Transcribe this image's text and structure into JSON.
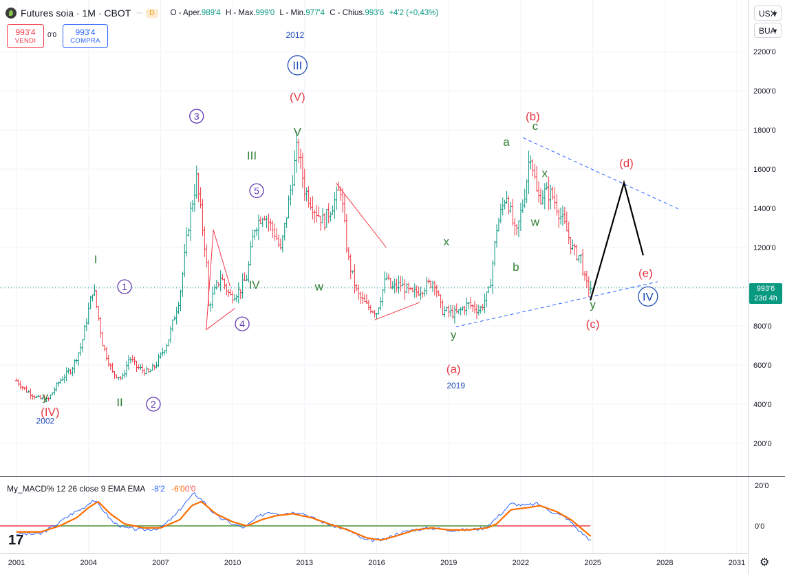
{
  "header": {
    "title": "Futures soia · 1M · CBOT",
    "badge1": "",
    "badge2": "D",
    "o_label": "O - Aper.",
    "o_value": "989'4",
    "h_label": "H - Max.",
    "h_value": "999'0",
    "l_label": "L - Min.",
    "l_value": "977'4",
    "c_label": "C - Chius.",
    "c_value": "993'6",
    "change": "+4'2 (+0,43%)"
  },
  "trade": {
    "sell_price": "993'4",
    "sell_label": "VENDI",
    "spread": "0'0",
    "buy_price": "993'4",
    "buy_label": "COMPRA"
  },
  "selectors": {
    "currency": "USX",
    "unit": "BUA"
  },
  "last_price": {
    "value": "993'6",
    "countdown": "23d 4h"
  },
  "macd_legend": {
    "name": "My_MACD%",
    "params": "12 26 close 9 EMA EMA",
    "macd": "-8'2",
    "signal": "-6'0",
    "hist": "0'0"
  },
  "colors": {
    "up": "#089981",
    "down": "#f23645",
    "green_wave": "#2e7d32",
    "red_wave": "#e53945",
    "purple_wave": "#5e35b1",
    "blue_wave": "#1e4bb8",
    "macd": "#2962ff",
    "signal": "#ff6d00"
  },
  "chart_data": {
    "type": "line",
    "title": "Futures soia · 1M · CBOT",
    "y_unit": "USX/BUA",
    "ylim": [
      100,
      2250
    ],
    "y_ticks": [
      "200'0",
      "400'0",
      "600'0",
      "800'0",
      "1000'0",
      "1200'0",
      "1400'0",
      "1600'0",
      "1800'0",
      "2000'0",
      "2200'0"
    ],
    "x_ticks": [
      "2001",
      "2004",
      "2007",
      "2010",
      "2013",
      "2016",
      "2019",
      "2022",
      "2025",
      "2028",
      "2031"
    ],
    "xlim": [
      2000.9,
      2031.5
    ],
    "price_anchors": [
      [
        2001.0,
        520
      ],
      [
        2001.4,
        470
      ],
      [
        2001.9,
        430
      ],
      [
        2002.3,
        420
      ],
      [
        2002.8,
        520
      ],
      [
        2003.3,
        580
      ],
      [
        2003.7,
        700
      ],
      [
        2004.2,
        1000
      ],
      [
        2004.6,
        700
      ],
      [
        2005.0,
        560
      ],
      [
        2005.4,
        530
      ],
      [
        2005.7,
        640
      ],
      [
        2006.0,
        590
      ],
      [
        2006.5,
        560
      ],
      [
        2006.8,
        600
      ],
      [
        2007.3,
        720
      ],
      [
        2007.8,
        950
      ],
      [
        2008.2,
        1350
      ],
      [
        2008.5,
        1550
      ],
      [
        2008.9,
        1150
      ],
      [
        2009.0,
        900
      ],
      [
        2009.5,
        1050
      ],
      [
        2009.9,
        950
      ],
      [
        2010.3,
        980
      ],
      [
        2010.6,
        1050
      ],
      [
        2010.9,
        1300
      ],
      [
        2011.3,
        1380
      ],
      [
        2011.8,
        1260
      ],
      [
        2012.0,
        1180
      ],
      [
        2012.4,
        1480
      ],
      [
        2012.7,
        1720
      ],
      [
        2013.0,
        1500
      ],
      [
        2013.4,
        1400
      ],
      [
        2013.8,
        1330
      ],
      [
        2014.3,
        1450
      ],
      [
        2014.5,
        1500
      ],
      [
        2014.8,
        1150
      ],
      [
        2015.2,
        960
      ],
      [
        2015.6,
        900
      ],
      [
        2016.0,
        870
      ],
      [
        2016.4,
        1050
      ],
      [
        2016.6,
        990
      ],
      [
        2017.0,
        1010
      ],
      [
        2017.5,
        960
      ],
      [
        2018.0,
        1000
      ],
      [
        2018.4,
        1030
      ],
      [
        2018.7,
        880
      ],
      [
        2019.3,
        860
      ],
      [
        2019.8,
        910
      ],
      [
        2020.3,
        880
      ],
      [
        2020.7,
        980
      ],
      [
        2021.0,
        1300
      ],
      [
        2021.4,
        1480
      ],
      [
        2021.8,
        1250
      ],
      [
        2022.2,
        1500
      ],
      [
        2022.4,
        1700
      ],
      [
        2022.7,
        1450
      ],
      [
        2023.0,
        1480
      ],
      [
        2023.3,
        1470
      ],
      [
        2023.6,
        1380
      ],
      [
        2023.9,
        1290
      ],
      [
        2024.2,
        1180
      ],
      [
        2024.5,
        1150
      ],
      [
        2024.7,
        1010
      ],
      [
        2024.9,
        995
      ]
    ],
    "macd_ticks": [
      "20'0",
      "0'0"
    ],
    "macd_ylim": [
      -12,
      22
    ],
    "macd_anchors": [
      [
        2001.0,
        -4
      ],
      [
        2002.0,
        -4
      ],
      [
        2002.7,
        1
      ],
      [
        2003.3,
        6
      ],
      [
        2003.8,
        9
      ],
      [
        2004.2,
        13
      ],
      [
        2004.6,
        8
      ],
      [
        2005.0,
        2
      ],
      [
        2005.5,
        -1
      ],
      [
        2006.3,
        -2
      ],
      [
        2007.0,
        -1
      ],
      [
        2007.6,
        5
      ],
      [
        2008.0,
        11
      ],
      [
        2008.4,
        16
      ],
      [
        2008.8,
        12
      ],
      [
        2009.3,
        5
      ],
      [
        2010.0,
        1
      ],
      [
        2010.5,
        -1
      ],
      [
        2011.0,
        4
      ],
      [
        2011.5,
        7
      ],
      [
        2012.0,
        6
      ],
      [
        2012.8,
        7
      ],
      [
        2013.5,
        3
      ],
      [
        2014.2,
        0
      ],
      [
        2014.8,
        -2
      ],
      [
        2015.5,
        -7
      ],
      [
        2016.3,
        -7
      ],
      [
        2016.8,
        -4
      ],
      [
        2017.5,
        -2
      ],
      [
        2018.3,
        -1
      ],
      [
        2019.0,
        -2
      ],
      [
        2019.8,
        -2
      ],
      [
        2020.5,
        -1
      ],
      [
        2021.0,
        4
      ],
      [
        2021.6,
        11
      ],
      [
        2022.2,
        10
      ],
      [
        2022.7,
        11
      ],
      [
        2023.3,
        7
      ],
      [
        2023.9,
        4
      ],
      [
        2024.4,
        -2
      ],
      [
        2024.9,
        -7
      ]
    ],
    "signal_anchors": [
      [
        2001.0,
        -3
      ],
      [
        2002.0,
        -3
      ],
      [
        2002.8,
        0
      ],
      [
        2003.5,
        4
      ],
      [
        2004.0,
        9
      ],
      [
        2004.4,
        12
      ],
      [
        2004.9,
        6
      ],
      [
        2005.5,
        1
      ],
      [
        2006.3,
        -1
      ],
      [
        2007.0,
        -1
      ],
      [
        2007.8,
        3
      ],
      [
        2008.3,
        10
      ],
      [
        2008.7,
        12
      ],
      [
        2009.3,
        6
      ],
      [
        2010.0,
        2
      ],
      [
        2010.6,
        0
      ],
      [
        2011.2,
        3
      ],
      [
        2011.8,
        5
      ],
      [
        2012.5,
        6
      ],
      [
        2013.3,
        4
      ],
      [
        2014.0,
        1
      ],
      [
        2014.8,
        -2
      ],
      [
        2015.6,
        -6
      ],
      [
        2016.2,
        -7
      ],
      [
        2016.8,
        -5
      ],
      [
        2017.6,
        -2
      ],
      [
        2018.3,
        -1
      ],
      [
        2019.0,
        -2
      ],
      [
        2019.8,
        -2
      ],
      [
        2020.6,
        -1
      ],
      [
        2021.0,
        1
      ],
      [
        2021.6,
        8
      ],
      [
        2022.3,
        9
      ],
      [
        2022.8,
        10
      ],
      [
        2023.5,
        7
      ],
      [
        2024.1,
        3
      ],
      [
        2024.6,
        -2
      ],
      [
        2024.9,
        -5
      ]
    ],
    "trend_lines": [
      {
        "color": "#2962ff",
        "dashed": true,
        "from": [
          2022.1,
          1760
        ],
        "to": [
          2028.6,
          1395
        ]
      },
      {
        "color": "#2962ff",
        "dashed": true,
        "from": [
          2019.3,
          795
        ],
        "to": [
          2027.7,
          1025
        ]
      },
      {
        "color": "#f23645",
        "dashed": false,
        "from": [
          2014.3,
          1530
        ],
        "to": [
          2016.4,
          1200
        ]
      },
      {
        "color": "#f23645",
        "dashed": false,
        "from": [
          2015.9,
          830
        ],
        "to": [
          2017.8,
          920
        ]
      },
      {
        "color": "#f23645",
        "dashed": false,
        "from": [
          2009.2,
          1290
        ],
        "to": [
          2009.9,
          1000
        ]
      },
      {
        "color": "#f23645",
        "dashed": false,
        "from": [
          2008.9,
          780
        ],
        "to": [
          2010.1,
          890
        ]
      },
      {
        "color": "#f23645",
        "dashed": false,
        "from": [
          2008.9,
          780
        ],
        "to": [
          2009.2,
          1290
        ]
      },
      {
        "color": "#000000",
        "dashed": false,
        "width": 2.2,
        "points": [
          [
            2024.9,
            930
          ],
          [
            2026.3,
            1530
          ],
          [
            2027.1,
            1160
          ]
        ]
      }
    ],
    "wave_labels": [
      {
        "text": "I",
        "x": 2004.3,
        "y": 1120,
        "color": "#2e7d32"
      },
      {
        "text": "II",
        "x": 2005.3,
        "y": 390,
        "color": "#2e7d32"
      },
      {
        "text": "III",
        "x": 2010.8,
        "y": 1650,
        "color": "#2e7d32"
      },
      {
        "text": "IV",
        "x": 2010.9,
        "y": 990,
        "color": "#2e7d32"
      },
      {
        "text": "V",
        "x": 2012.7,
        "y": 1770,
        "color": "#2e7d32"
      },
      {
        "text": "w",
        "x": 2013.6,
        "y": 980,
        "color": "#2e7d32"
      },
      {
        "text": "x",
        "x": 2018.9,
        "y": 1210,
        "color": "#2e7d32"
      },
      {
        "text": "y",
        "x": 2002.2,
        "y": 420,
        "color": "#2e7d32"
      },
      {
        "text": "y",
        "x": 2019.2,
        "y": 735,
        "color": "#2e7d32"
      },
      {
        "text": "a",
        "x": 2021.4,
        "y": 1720,
        "color": "#2e7d32"
      },
      {
        "text": "b",
        "x": 2021.8,
        "y": 1080,
        "color": "#2e7d32"
      },
      {
        "text": "c",
        "x": 2022.6,
        "y": 1800,
        "color": "#2e7d32"
      },
      {
        "text": "x",
        "x": 2023.0,
        "y": 1560,
        "color": "#2e7d32"
      },
      {
        "text": "w",
        "x": 2022.6,
        "y": 1310,
        "color": "#2e7d32"
      },
      {
        "text": "y",
        "x": 2025.0,
        "y": 890,
        "color": "#2e7d32"
      },
      {
        "text": "(IV)",
        "x": 2002.4,
        "y": 340,
        "color": "#e53945"
      },
      {
        "text": "(V)",
        "x": 2012.7,
        "y": 1950,
        "color": "#e53945"
      },
      {
        "text": "(a)",
        "x": 2019.2,
        "y": 560,
        "color": "#e53945"
      },
      {
        "text": "(b)",
        "x": 2022.5,
        "y": 1850,
        "color": "#e53945"
      },
      {
        "text": "(c)",
        "x": 2025.0,
        "y": 790,
        "color": "#e53945"
      },
      {
        "text": "(d)",
        "x": 2026.4,
        "y": 1610,
        "color": "#e53945"
      },
      {
        "text": "(e)",
        "x": 2027.2,
        "y": 1050,
        "color": "#e53945"
      }
    ],
    "circle_labels": [
      {
        "text": "1",
        "x": 2005.5,
        "y": 1000,
        "color": "#5e35b1"
      },
      {
        "text": "2",
        "x": 2006.7,
        "y": 400,
        "color": "#5e35b1"
      },
      {
        "text": "3",
        "x": 2008.5,
        "y": 1870,
        "color": "#5e35b1"
      },
      {
        "text": "4",
        "x": 2010.4,
        "y": 810,
        "color": "#5e35b1"
      },
      {
        "text": "5",
        "x": 2011.0,
        "y": 1490,
        "color": "#5e35b1"
      },
      {
        "text": "III",
        "x": 2012.7,
        "y": 2130,
        "color": "#1e4bb8"
      },
      {
        "text": "IV",
        "x": 2027.3,
        "y": 950,
        "color": "#1e4bb8"
      }
    ],
    "year_labels": [
      {
        "text": "2002",
        "x": 2002.2,
        "y": 300
      },
      {
        "text": "2012",
        "x": 2012.6,
        "y": 2270
      },
      {
        "text": "2019",
        "x": 2019.3,
        "y": 480
      }
    ]
  }
}
